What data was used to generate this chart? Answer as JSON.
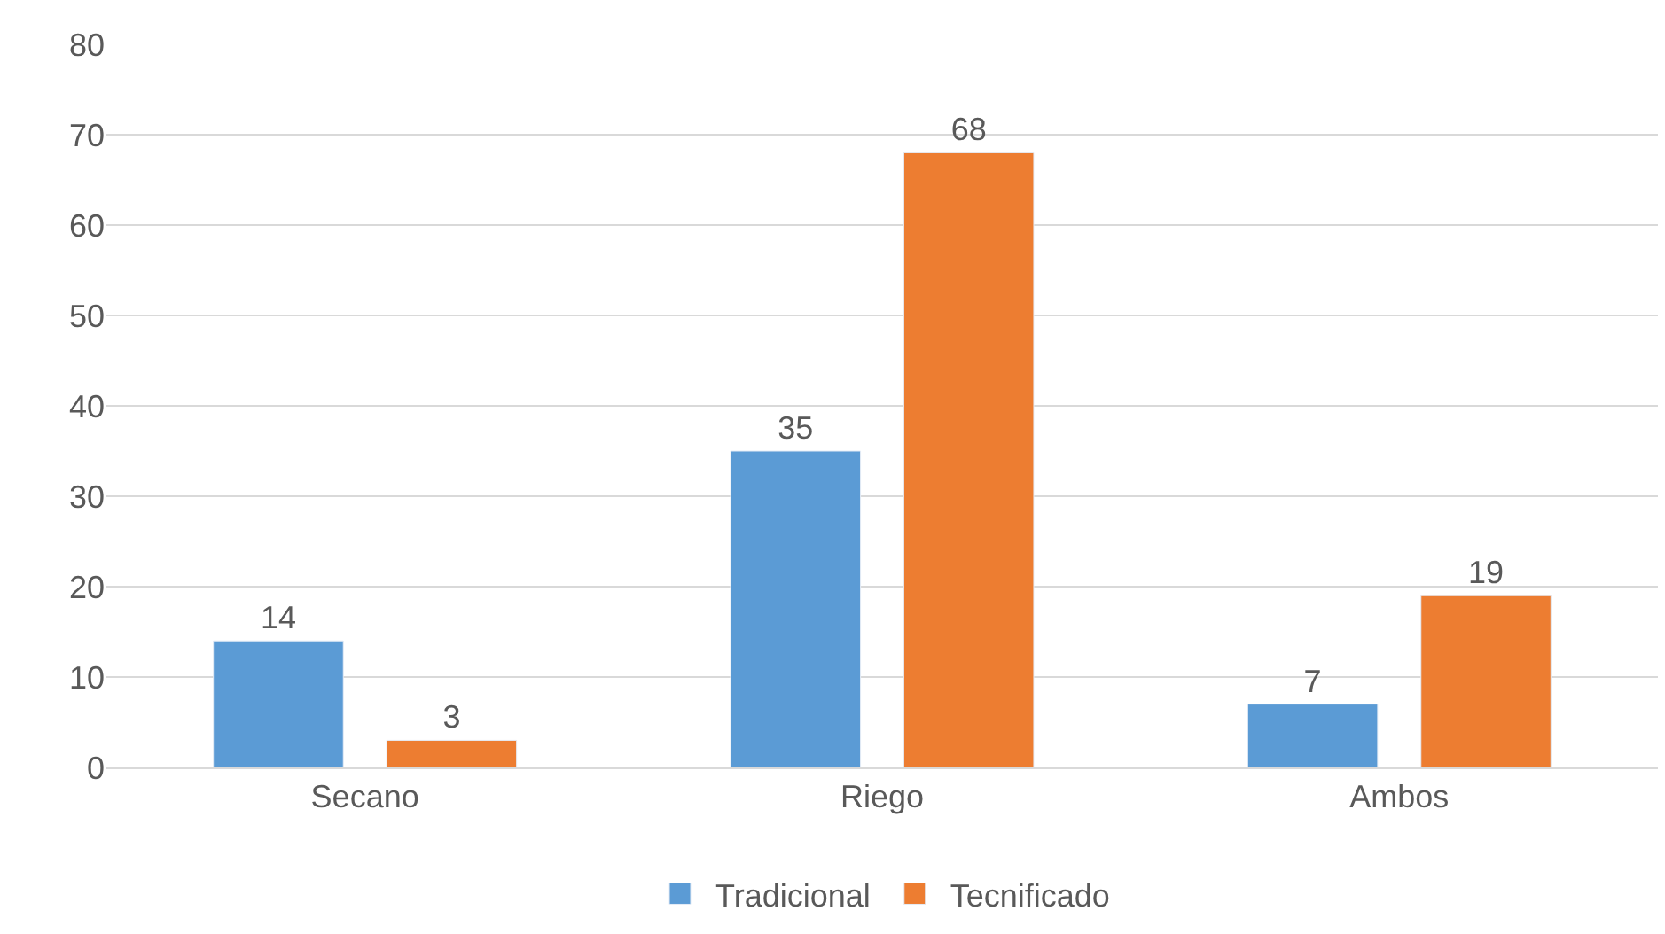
{
  "chart_data": {
    "type": "bar",
    "categories": [
      "Secano",
      "Riego",
      "Ambos"
    ],
    "series": [
      {
        "name": "Tradicional",
        "color": "#5b9bd5",
        "values": [
          14,
          35,
          7
        ]
      },
      {
        "name": "Tecnificado",
        "color": "#ed7d31",
        "values": [
          3,
          68,
          19
        ]
      }
    ],
    "ylim": [
      0,
      80
    ],
    "yticks": [
      0,
      10,
      20,
      30,
      40,
      50,
      60,
      70,
      80
    ],
    "grid": "y",
    "legend": "bottom",
    "data_labels": true
  }
}
